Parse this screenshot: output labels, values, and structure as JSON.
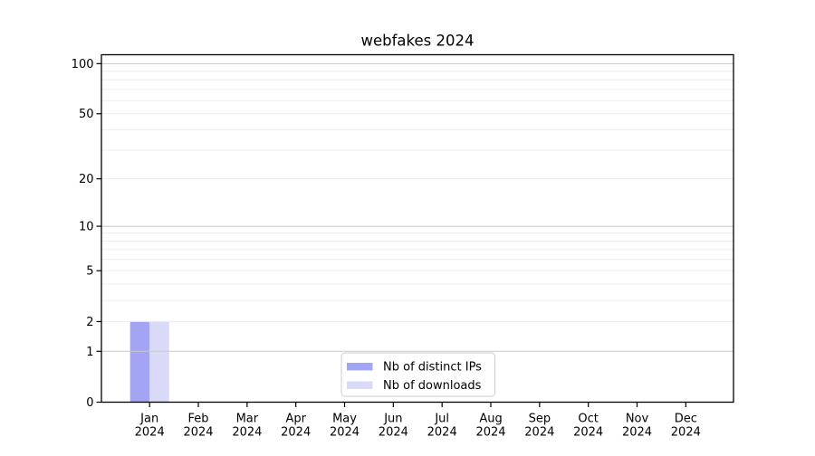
{
  "chart_data": {
    "type": "bar",
    "title": "webfakes 2024",
    "categories": [
      "Jan 2024",
      "Feb 2024",
      "Mar 2024",
      "Apr 2024",
      "May 2024",
      "Jun 2024",
      "Jul 2024",
      "Aug 2024",
      "Sep 2024",
      "Oct 2024",
      "Nov 2024",
      "Dec 2024"
    ],
    "series": [
      {
        "name": "Nb of distinct IPs",
        "color": "#a4a4f4",
        "values": [
          2,
          0,
          0,
          0,
          0,
          0,
          0,
          0,
          0,
          0,
          0,
          0
        ]
      },
      {
        "name": "Nb of downloads",
        "color": "#d9d9f8",
        "values": [
          2,
          0,
          0,
          0,
          0,
          0,
          0,
          0,
          0,
          0,
          0,
          0
        ]
      }
    ],
    "xlabel": "",
    "ylabel": "",
    "yscale": "log1p",
    "ylim": [
      0,
      113
    ],
    "yticks": [
      0,
      1,
      2,
      5,
      10,
      20,
      50,
      100
    ],
    "major_gridlines": [
      1,
      10,
      100
    ],
    "minor_gridlines": [
      2,
      3,
      4,
      5,
      6,
      7,
      8,
      9,
      20,
      30,
      40,
      50,
      60,
      70,
      80,
      90
    ],
    "grid": "horizontal",
    "legend": {
      "position": "lower center"
    },
    "colors": {
      "background": "#ffffff",
      "text": "#000000",
      "axis": "#000000",
      "major_grid": "#c9c9c9",
      "minor_grid": "#ececec",
      "legend_border": "#cccccc"
    }
  }
}
